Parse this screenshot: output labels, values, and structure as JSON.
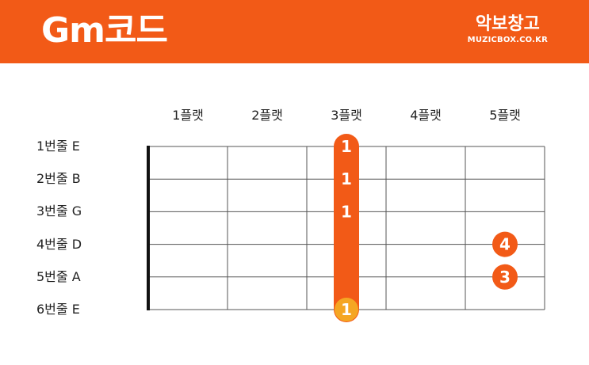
{
  "header": {
    "title": "Gm코드",
    "brand_name": "악보창고",
    "brand_url": "MUZICBOX.CO.KR"
  },
  "colors": {
    "header_bg": "#f25a17",
    "barre": "#f25a17",
    "finger_dot": "#f25a17",
    "root_dot": "#f5a623",
    "grid": "#555555",
    "nut": "#111111"
  },
  "chord": {
    "frets": [
      "1플랫",
      "2플랫",
      "3플랫",
      "4플랫",
      "5플랫"
    ],
    "strings": [
      "1번줄 E",
      "2번줄 B",
      "3번줄 G",
      "4번줄 D",
      "5번줄 A",
      "6번줄 E"
    ],
    "barre": {
      "fret": 3,
      "from_string": 1,
      "to_string": 6
    },
    "fingers": [
      {
        "string": 1,
        "fret": 3,
        "label": "1",
        "root": false
      },
      {
        "string": 2,
        "fret": 3,
        "label": "1",
        "root": false
      },
      {
        "string": 3,
        "fret": 3,
        "label": "1",
        "root": false
      },
      {
        "string": 4,
        "fret": 5,
        "label": "4",
        "root": false
      },
      {
        "string": 5,
        "fret": 5,
        "label": "3",
        "root": false
      },
      {
        "string": 6,
        "fret": 3,
        "label": "1",
        "root": true
      }
    ]
  }
}
